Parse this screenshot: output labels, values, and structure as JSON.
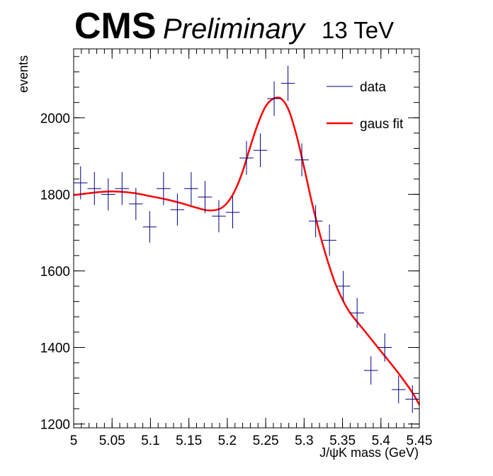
{
  "header": {
    "cms": "CMS",
    "preliminary": "Preliminary",
    "energy": "13 TeV"
  },
  "chart_data": {
    "type": "scatter",
    "xlabel": "J/ψK mass (GeV)",
    "ylabel": "events",
    "xlim": [
      5.0,
      5.45
    ],
    "ylim": [
      1190,
      2180
    ],
    "x_ticks": [
      "5",
      "5.05",
      "5.1",
      "5.15",
      "5.2",
      "5.25",
      "5.3",
      "5.35",
      "5.4",
      "5.45"
    ],
    "x_tick_values": [
      5.0,
      5.05,
      5.1,
      5.15,
      5.2,
      5.25,
      5.3,
      5.35,
      5.4,
      5.45
    ],
    "y_ticks": [
      "1200",
      "1400",
      "1600",
      "1800",
      "2000"
    ],
    "y_tick_values": [
      1200,
      1400,
      1600,
      1800,
      2000
    ],
    "legend": {
      "position": "top-right",
      "data_label": "data",
      "fit_label": "gaus fit"
    },
    "colors": {
      "data": "#000080",
      "fit": "#ff0000"
    },
    "bin_width": 0.018,
    "data": {
      "x": [
        5.009,
        5.027,
        5.045,
        5.063,
        5.081,
        5.099,
        5.117,
        5.135,
        5.153,
        5.171,
        5.189,
        5.207,
        5.225,
        5.243,
        5.261,
        5.279,
        5.297,
        5.315,
        5.333,
        5.351,
        5.369,
        5.387,
        5.405,
        5.423,
        5.441
      ],
      "y": [
        1830,
        1815,
        1800,
        1815,
        1775,
        1715,
        1815,
        1760,
        1815,
        1793,
        1743,
        1753,
        1895,
        1915,
        2050,
        2090,
        1890,
        1730,
        1680,
        1560,
        1490,
        1340,
        1400,
        1290,
        1265
      ],
      "yerr": [
        43,
        43,
        42,
        43,
        42,
        41,
        43,
        42,
        43,
        42,
        42,
        42,
        44,
        44,
        45,
        46,
        43,
        42,
        41,
        40,
        39,
        37,
        37,
        36,
        36
      ]
    },
    "fit": {
      "x": [
        5.0,
        5.02,
        5.04,
        5.06,
        5.08,
        5.1,
        5.12,
        5.14,
        5.16,
        5.175,
        5.19,
        5.2,
        5.21,
        5.22,
        5.23,
        5.24,
        5.25,
        5.26,
        5.27,
        5.28,
        5.29,
        5.3,
        5.31,
        5.32,
        5.33,
        5.34,
        5.35,
        5.36,
        5.38,
        5.4,
        5.42,
        5.44,
        5.45
      ],
      "y": [
        1798,
        1803,
        1807,
        1807,
        1803,
        1795,
        1787,
        1777,
        1765,
        1758,
        1762,
        1778,
        1810,
        1860,
        1925,
        1985,
        2030,
        2050,
        2050,
        2020,
        1955,
        1870,
        1780,
        1700,
        1630,
        1570,
        1525,
        1490,
        1440,
        1390,
        1340,
        1285,
        1250
      ]
    }
  }
}
